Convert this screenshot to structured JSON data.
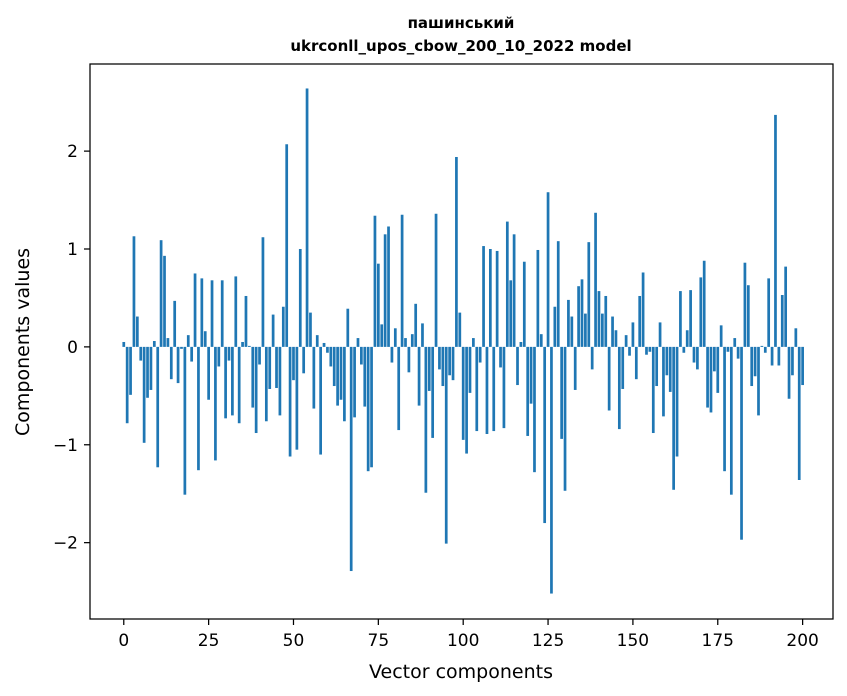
{
  "chart_data": {
    "type": "bar",
    "title_lines": [
      "пашинський",
      "ukrconll_upos_cbow_200_10_2022 model"
    ],
    "xlabel": "Vector components",
    "ylabel": "Components values",
    "xlim": [
      -9.95,
      208.95
    ],
    "ylim": [
      -2.78,
      2.89
    ],
    "x_ticks": [
      0,
      25,
      50,
      75,
      100,
      125,
      150,
      175,
      200
    ],
    "y_ticks": [
      -2,
      -1,
      0,
      1,
      2
    ],
    "y_tick_labels": [
      "−2",
      "−1",
      "0",
      "1",
      "2"
    ],
    "bar_color": "#1f77b4",
    "grid": false,
    "values": [
      0.05,
      -0.78,
      -0.49,
      1.13,
      0.31,
      -0.14,
      -0.98,
      -0.52,
      -0.44,
      0.06,
      -1.23,
      1.09,
      0.93,
      0.09,
      -0.33,
      0.47,
      -0.37,
      -0.02,
      -1.51,
      0.12,
      -0.15,
      0.75,
      -1.26,
      0.7,
      0.16,
      -0.54,
      0.68,
      -1.16,
      -0.2,
      0.68,
      -0.73,
      -0.14,
      -0.7,
      0.72,
      -0.78,
      0.05,
      0.52,
      0.01,
      -0.62,
      -0.88,
      -0.18,
      1.12,
      -0.76,
      -0.43,
      0.33,
      -0.42,
      -0.7,
      0.41,
      2.07,
      -1.12,
      -0.34,
      -1.05,
      1.0,
      -0.27,
      2.64,
      0.35,
      -0.63,
      0.12,
      -1.1,
      0.04,
      -0.06,
      -0.2,
      -0.4,
      -0.6,
      -0.54,
      -0.76,
      0.39,
      -2.29,
      -0.72,
      0.09,
      -0.18,
      -0.61,
      -1.27,
      -1.23,
      1.34,
      0.85,
      0.23,
      1.15,
      1.23,
      -0.16,
      0.19,
      -0.85,
      1.35,
      0.09,
      -0.26,
      0.13,
      0.44,
      -0.6,
      0.24,
      -1.49,
      -0.45,
      -0.93,
      1.36,
      -0.23,
      -0.4,
      -2.01,
      -0.29,
      -0.34,
      1.94,
      0.35,
      -0.95,
      -1.09,
      -0.47,
      0.09,
      -0.86,
      -0.16,
      1.03,
      -0.89,
      1.0,
      -0.86,
      0.98,
      -0.21,
      -0.83,
      1.28,
      0.68,
      1.15,
      -0.39,
      0.05,
      0.87,
      -0.91,
      -0.58,
      -1.28,
      0.99,
      0.13,
      -1.8,
      1.58,
      -2.52,
      0.41,
      1.08,
      -0.94,
      -1.47,
      0.48,
      0.31,
      -0.44,
      0.62,
      0.69,
      0.34,
      1.07,
      -0.23,
      1.37,
      0.57,
      0.34,
      0.52,
      -0.65,
      0.31,
      0.17,
      -0.84,
      -0.43,
      0.12,
      -0.09,
      0.25,
      -0.33,
      0.52,
      0.76,
      -0.08,
      -0.05,
      -0.88,
      -0.4,
      0.25,
      -0.71,
      -0.29,
      -0.46,
      -1.46,
      -1.12,
      0.57,
      -0.06,
      0.17,
      0.58,
      -0.16,
      -0.23,
      0.71,
      0.88,
      -0.62,
      -0.67,
      -0.25,
      -0.47,
      0.22,
      -1.27,
      -0.05,
      -1.51,
      0.09,
      -0.12,
      -1.97,
      0.86,
      0.63,
      -0.4,
      -0.3,
      -0.7,
      0.01,
      -0.06,
      0.7,
      -0.19,
      2.37,
      -0.19,
      0.53,
      0.82,
      -0.53,
      -0.29,
      0.19,
      -1.36,
      -0.39
    ]
  }
}
